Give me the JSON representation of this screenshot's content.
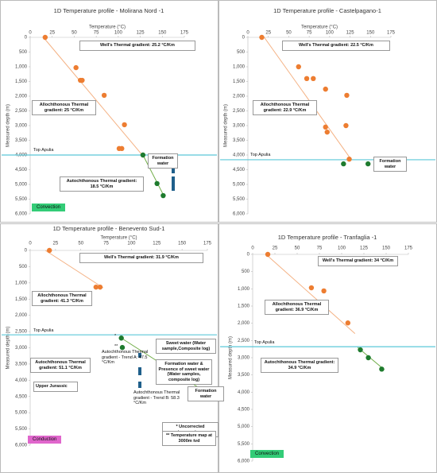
{
  "chart_data": [
    {
      "type": "scatter",
      "title": "1D Temperature profile - Molirana Nord -1",
      "x_label": "Temperature (°C)",
      "y_label": "Measured depth (m)",
      "xlim": [
        0,
        175
      ],
      "xticks": [
        0,
        25,
        50,
        75,
        100,
        125,
        150,
        175
      ],
      "ylim": [
        0,
        6000
      ],
      "yticks": [
        0,
        500,
        {
          "value": 1000,
          "label": "1,000"
        },
        {
          "value": 1500,
          "label": "1,500"
        },
        {
          "value": 2000,
          "label": "2,000"
        },
        {
          "value": 2500,
          "label": "2,500"
        },
        {
          "value": 3000,
          "label": "3,000"
        },
        {
          "value": 3500,
          "label": "3,500"
        },
        {
          "value": 4000,
          "label": "4,000"
        },
        {
          "value": 4500,
          "label": "4,500"
        },
        {
          "value": 5000,
          "label": "5,000"
        },
        {
          "value": 5500,
          "label": "5,500"
        },
        {
          "value": 6000,
          "label": "6,000"
        }
      ],
      "series": [
        {
          "color": "#ed7d31",
          "x": [
            17,
            52,
            57,
            59,
            84,
            107,
            101,
            104
          ],
          "y": [
            0,
            1030,
            1460,
            1460,
            1970,
            2970,
            3780,
            3780
          ]
        },
        {
          "color": "#1e7b2e",
          "x": [
            128,
            144,
            151
          ],
          "y": [
            4000,
            4970,
            5380
          ]
        }
      ],
      "fits": [
        {
          "color": "#f4b183",
          "x": [
            15,
            130
          ],
          "y": [
            0,
            4100
          ]
        },
        {
          "color": "#70ad47",
          "x": [
            128,
            152
          ],
          "y": [
            4000,
            5400
          ]
        }
      ],
      "reference": {
        "label": "Top Apulia",
        "value": 4000,
        "color": "#5bc8d8"
      },
      "annotations": [
        "Well's Thermal gradient: 25.2 °C/Km",
        "Allochthonous Thermal gradient: 25 °C/Km",
        "Autochthonous Thermal gradient: 18.5 °C/Km",
        "Formation water"
      ],
      "badge": {
        "text": "Convection",
        "color": "#33cc77"
      }
    },
    {
      "type": "scatter",
      "title": "1D Temperature profile - Castelpagano-1",
      "x_label": "Temperature (°C)",
      "y_label": "Measured depth (m)",
      "xlim": [
        0,
        175
      ],
      "xticks": [
        0,
        25,
        50,
        75,
        100,
        125,
        150,
        175
      ],
      "ylim": [
        0,
        6000
      ],
      "yticks": [
        0,
        500,
        {
          "value": 1000,
          "label": "1,000"
        },
        {
          "value": 1500,
          "label": "1,500"
        },
        {
          "value": 2000,
          "label": "2,000"
        },
        {
          "value": 2500,
          "label": "2,500"
        },
        {
          "value": 3000,
          "label": "3,000"
        },
        {
          "value": 3500,
          "label": "3,500"
        },
        {
          "value": 4000,
          "label": "4,000"
        },
        {
          "value": 4500,
          "label": "4,500"
        },
        {
          "value": 5000,
          "label": "5,000"
        },
        {
          "value": 5500,
          "label": "5,500"
        },
        {
          "value": 6000,
          "label": "6,000"
        }
      ],
      "series": [
        {
          "color": "#ed7d31",
          "x": [
            17,
            62,
            72,
            80,
            95,
            121,
            95,
            97,
            120,
            124
          ],
          "y": [
            0,
            1000,
            1400,
            1400,
            1760,
            1970,
            3050,
            3220,
            3000,
            4140
          ]
        },
        {
          "color": "#1e7b2e",
          "x": [
            117,
            147
          ],
          "y": [
            4300,
            4300
          ]
        }
      ],
      "fits": [
        {
          "color": "#f4b183",
          "x": [
            20,
            125
          ],
          "y": [
            0,
            4100
          ]
        }
      ],
      "reference": {
        "label": "Top Apulia",
        "value": 4160,
        "color": "#5bc8d8"
      },
      "annotations": [
        "Well's Thermal gradient: 22.5 °C/Km",
        "Allochthonous Thermal gradient: 22.9 °C/Km",
        "Formation water"
      ]
    },
    {
      "type": "scatter",
      "title": "1D Temperature profile - Benevento Sud-1",
      "x_label": "Temperature (°C)",
      "y_label": "Measured depth (m)",
      "xlim": [
        0,
        175
      ],
      "xticks": [
        0,
        25,
        50,
        75,
        100,
        125,
        150,
        175
      ],
      "ylim": [
        0,
        6000
      ],
      "yticks": [
        0,
        500,
        {
          "value": 1000,
          "label": "1,000"
        },
        {
          "value": 1500,
          "label": "1,500"
        },
        {
          "value": 2000,
          "label": "2,000"
        },
        {
          "value": 2500,
          "label": "2,500"
        },
        {
          "value": 3000,
          "label": "3,000"
        },
        {
          "value": 3500,
          "label": "3,500"
        },
        {
          "value": 4000,
          "label": "4,000"
        },
        {
          "value": 4500,
          "label": "4,500"
        },
        {
          "value": 5000,
          "label": "5,000"
        },
        {
          "value": 5500,
          "label": "5,500"
        },
        {
          "value": 6000,
          "label": "6,000"
        }
      ],
      "series": [
        {
          "color": "#ed7d31",
          "x": [
            19,
            65,
            69
          ],
          "y": [
            0,
            1130,
            1130
          ]
        },
        {
          "color": "#1e7b2e",
          "x": [
            90,
            91,
            136,
            141,
            147,
            155,
            170,
            172,
            174
          ],
          "y": [
            2700,
            2990,
            3950,
            3950,
            3950,
            3950,
            4340,
            4340,
            4340
          ]
        }
      ],
      "fits": [
        {
          "color": "#f4b183",
          "x": [
            15,
            72
          ],
          "y": [
            0,
            1150
          ]
        },
        {
          "color": "#70ad47",
          "x": [
            90,
            172
          ],
          "y": [
            2700,
            4340
          ]
        }
      ],
      "reference": {
        "label": "Top Apulia",
        "value": 2600,
        "color": "#5bc8d8"
      },
      "annotations": [
        "Well's Thermal gradient: 31.9 °C/Km",
        "Allochthonous Thermal gradient: 41.3 °C/Km",
        "*",
        "**",
        "Autochthonous Thermal gradient: 51.1 °C/Km",
        "Upper Jurassic",
        "Autochthonous Thermal gradient - Trend A: 47.5 °C/Km",
        "Sweet water (Water sample,Composite log)",
        "Formation water & Presence of sweet water (Water samples, composite log)",
        "Formation water",
        "Autochthonous Thermal gradient - Trend B: 58.3 °C/Km",
        "* Uncorrected temperature",
        "** Temperature map at 3000m tvd"
      ],
      "badge": {
        "text": "Conduction",
        "color": "#e066cc"
      }
    },
    {
      "type": "scatter",
      "title": "1D Temperature profile - Tranfaglia -1",
      "y_label": "Measured depth (m)",
      "xlim": [
        0,
        175
      ],
      "xticks": [
        0,
        25,
        50,
        75,
        100,
        125,
        150,
        175
      ],
      "ylim": [
        0,
        6000
      ],
      "yticks": [
        0,
        500,
        {
          "value": 1000,
          "label": "1,000"
        },
        {
          "value": 1500,
          "label": "1,500"
        },
        {
          "value": 2000,
          "label": "2,000"
        },
        {
          "value": 2500,
          "label": "2,500"
        },
        {
          "value": 3000,
          "label": "3,000"
        },
        {
          "value": 3500,
          "label": "3,500"
        },
        {
          "value": 4000,
          "label": "4,000"
        },
        {
          "value": 4500,
          "label": "4,500"
        },
        {
          "value": 5000,
          "label": "5,000"
        },
        {
          "value": 5500,
          "label": "5,500"
        },
        {
          "value": 6000,
          "label": "6,000"
        }
      ],
      "series": [
        {
          "color": "#ed7d31",
          "x": [
            17,
            66,
            80,
            107
          ],
          "y": [
            0,
            970,
            1060,
            1990
          ]
        },
        {
          "color": "#1e7b2e",
          "x": [
            121,
            130,
            145
          ],
          "y": [
            2770,
            3000,
            3330
          ]
        }
      ],
      "fits": [
        {
          "color": "#f4b183",
          "x": [
            15,
            115
          ],
          "y": [
            0,
            2300
          ]
        },
        {
          "color": "#70ad47",
          "x": [
            118,
            148
          ],
          "y": [
            2700,
            3350
          ]
        }
      ],
      "reference": {
        "label": "Top Apulia",
        "value": 2680,
        "color": "#5bc8d8"
      },
      "annotations": [
        "Well's Thermal gradient: 34 °C/Km",
        "Allochthonous Thermal gradient: 36.9 °C/Km",
        "Autochthonous Thermal gradient: 34.9 °C/Km"
      ],
      "badge": {
        "text": "Convection",
        "color": "#33cc77"
      }
    }
  ]
}
